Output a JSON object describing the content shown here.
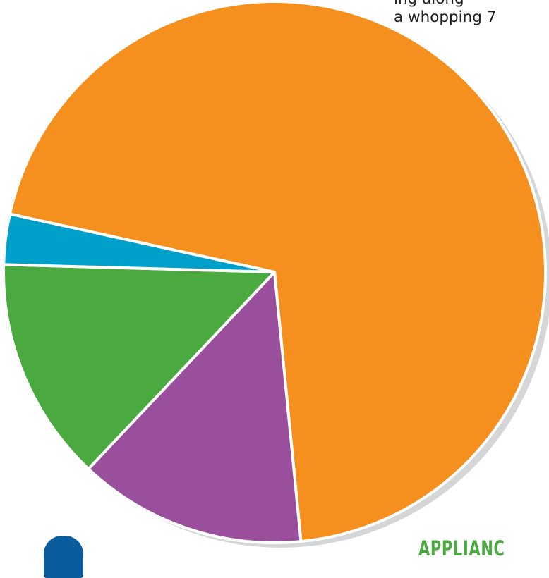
{
  "page_text": {
    "line_1": "ing along ",
    "line_2": "a whopping 7"
  },
  "label_text": "APPLIANC",
  "colors": {
    "orange": "#f5901f",
    "purple": "#9a4f9d",
    "green": "#4aa93f",
    "blue": "#00a0cb",
    "shadow": "#d5d6d8",
    "separator": "#ffffff",
    "corner_mark": "#0b5c9c"
  },
  "chart_data": {
    "type": "pie",
    "title": "",
    "legend": "none",
    "slices": [
      {
        "color": "orange",
        "value": 70.0
      },
      {
        "color": "purple",
        "value": 13.6
      },
      {
        "color": "green",
        "value": 13.4
      },
      {
        "color": "blue",
        "value": 3.0
      }
    ]
  }
}
